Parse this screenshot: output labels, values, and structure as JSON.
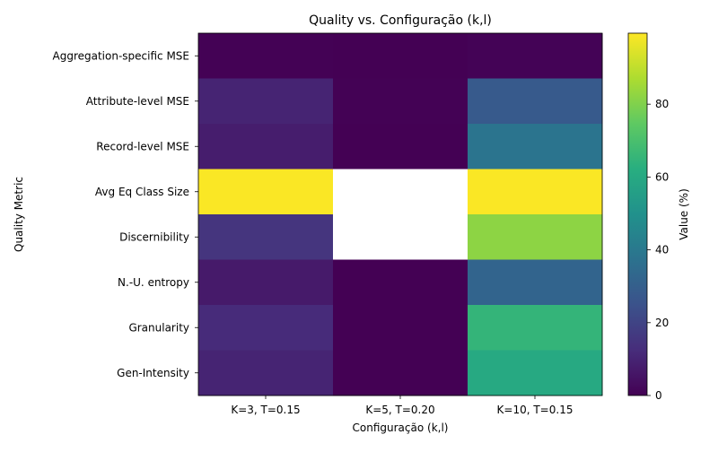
{
  "chart_data": {
    "type": "heatmap",
    "title": "Quality vs. Configuração (k,l)",
    "xlabel": "Configuração (k,l)",
    "ylabel": "Quality Metric",
    "x_categories": [
      "K=3, T=0.15",
      "K=5, T=0.20",
      "K=10, T=0.15"
    ],
    "y_categories": [
      "Aggregation-specific MSE",
      "Attribute-level MSE",
      "Record-level MSE",
      "Avg Eq Class Size",
      "Discernibility",
      "N.-U. entropy",
      "Granularity",
      "Gen-Intensity"
    ],
    "values": [
      [
        0.2,
        0.1,
        0.5
      ],
      [
        10,
        0.2,
        28
      ],
      [
        8,
        0.1,
        38
      ],
      [
        99,
        null,
        99
      ],
      [
        15,
        null,
        82
      ],
      [
        7,
        0.1,
        32
      ],
      [
        12,
        0.1,
        65
      ],
      [
        10,
        0.1,
        60
      ]
    ],
    "colorbar": {
      "label": "Value (%)",
      "range": [
        0,
        99.5
      ],
      "ticks": [
        0,
        20,
        40,
        60,
        80
      ],
      "colormap": "viridis"
    }
  }
}
